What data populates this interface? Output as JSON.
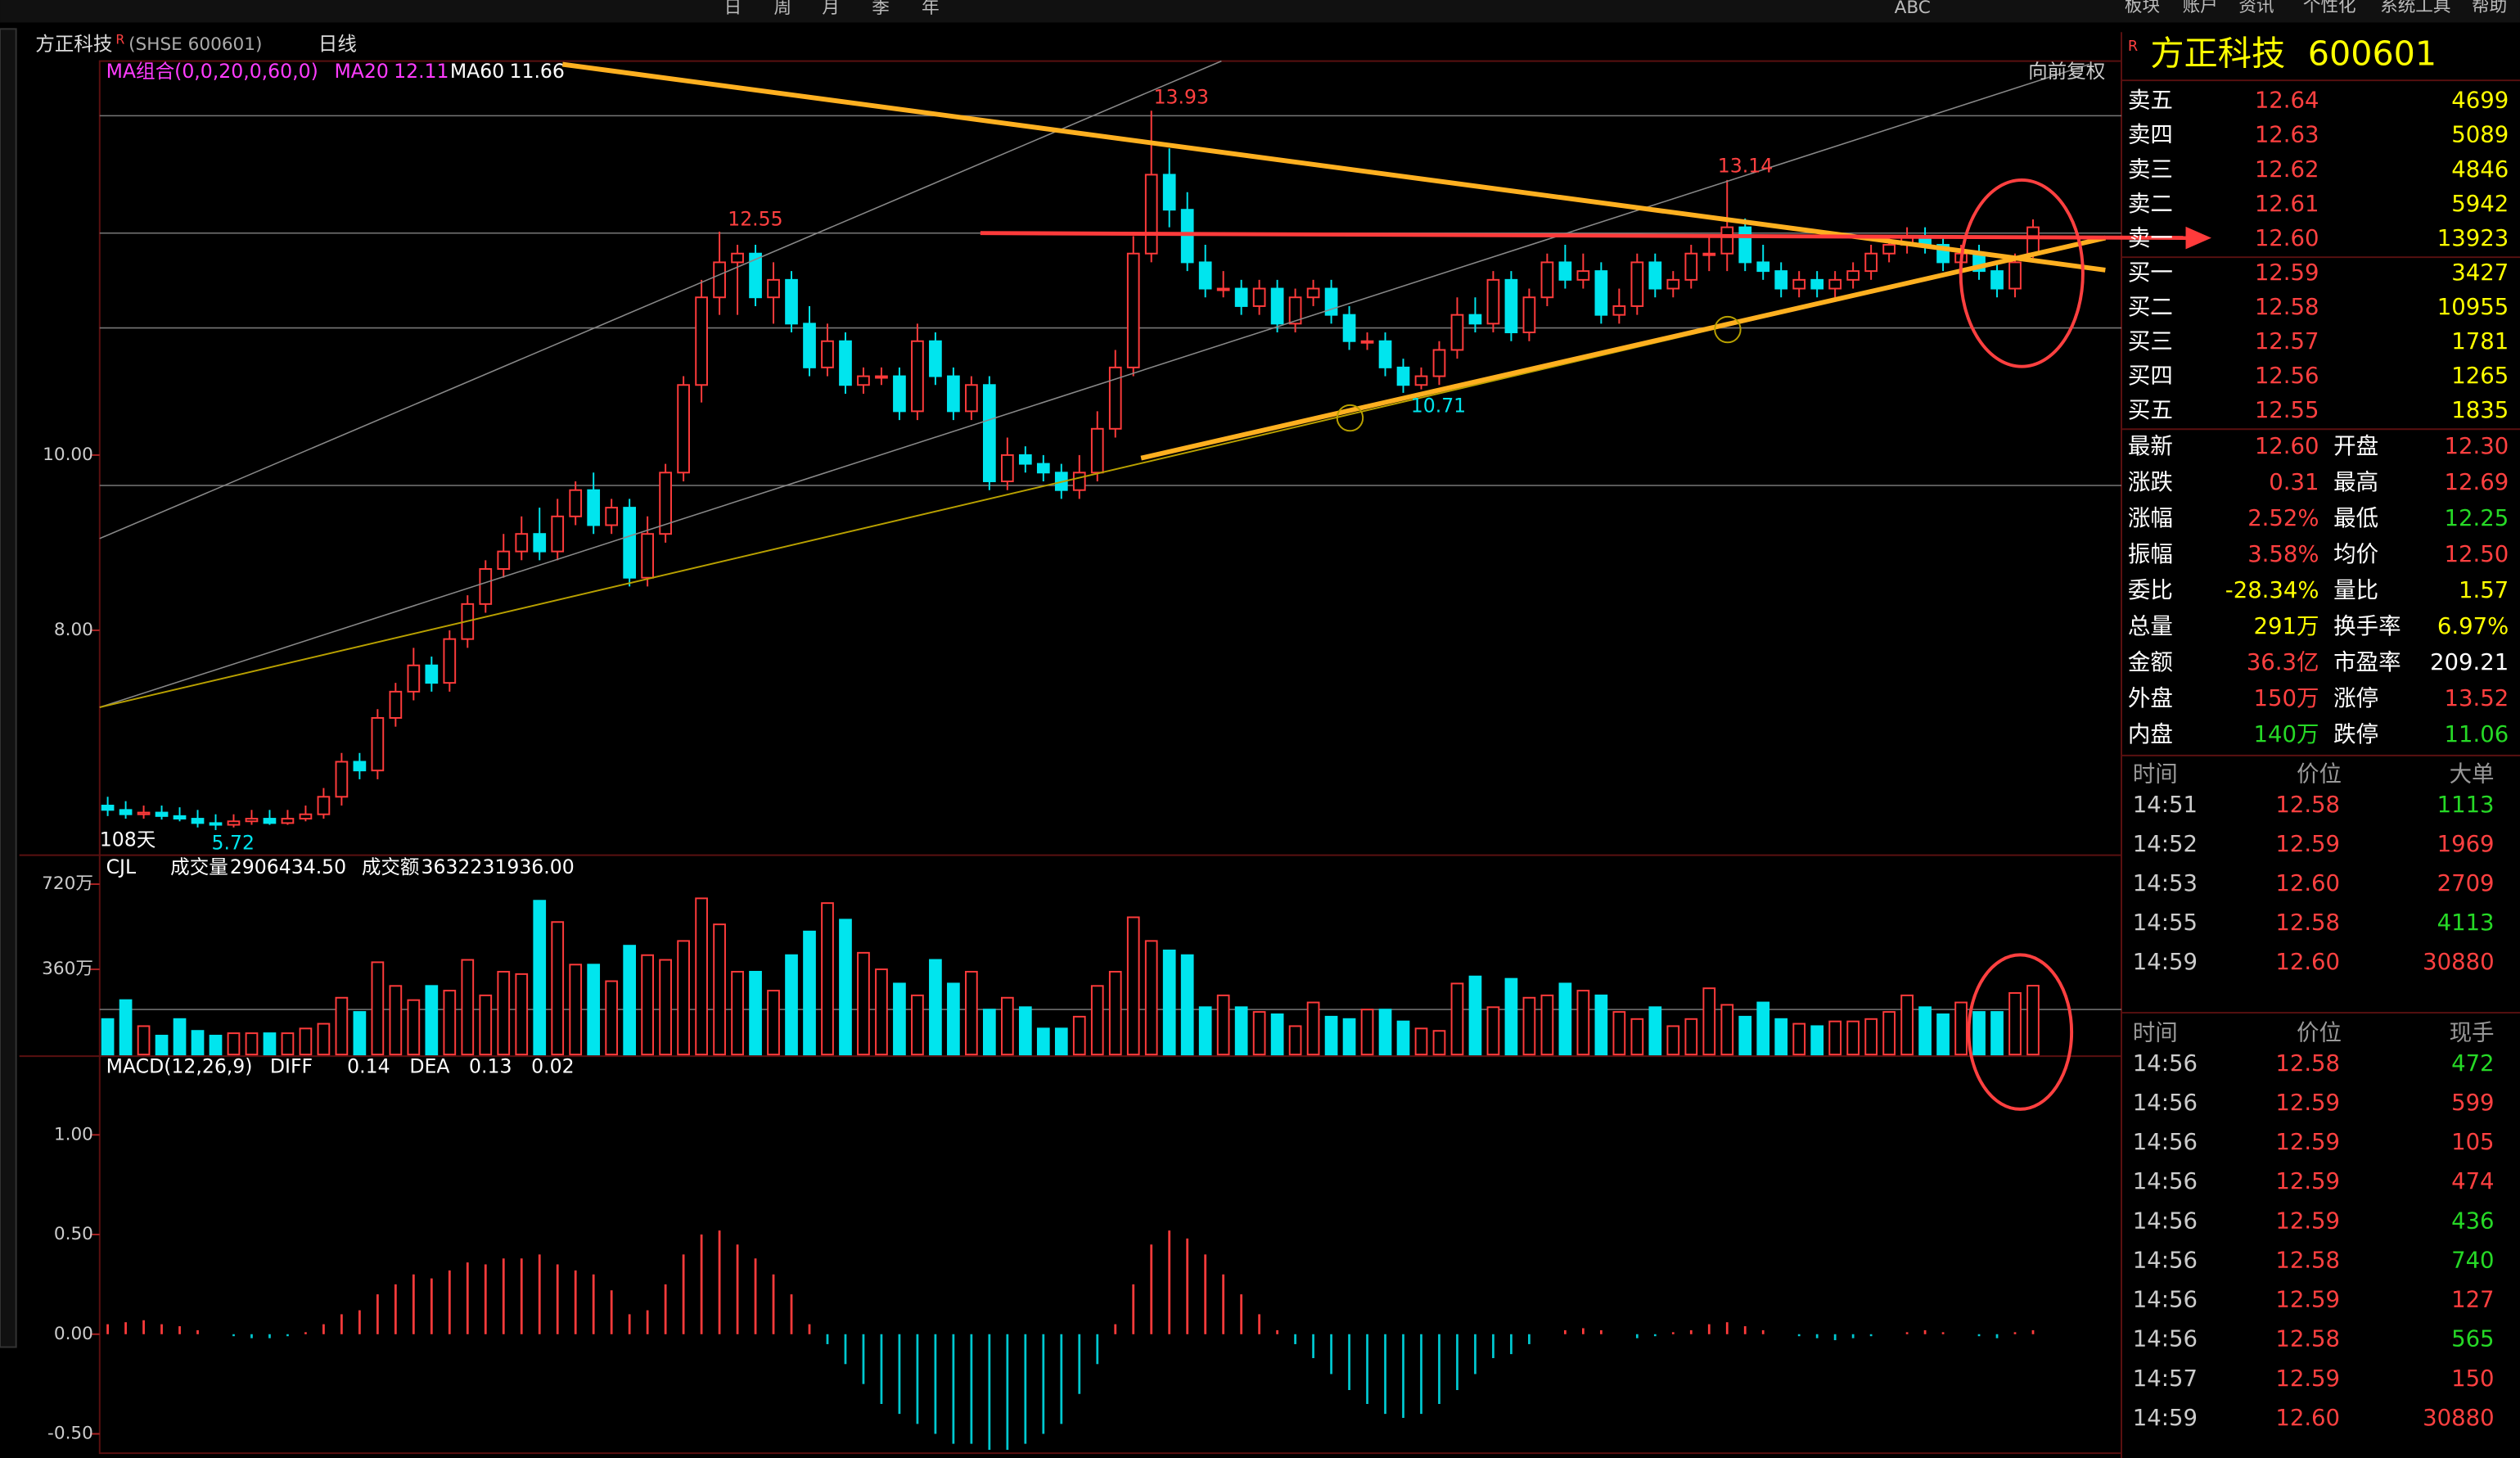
{
  "header": {
    "toolbar": [
      "日",
      "周",
      "月",
      "季",
      "年",
      "ABC"
    ],
    "menu": [
      "板块",
      "账户",
      "资讯",
      "个性化",
      "系统工具",
      "帮助"
    ],
    "stock": "方正科技",
    "badge": "R",
    "code": "(SHSE 600601)",
    "period": "日线"
  },
  "chart_data": [
    {
      "type": "candlestick",
      "indicator": "MA组合(0,0,20,0,60,0)",
      "ma_items": [
        {
          "name": "MA20",
          "value": "12.11",
          "color": "#ff3cff"
        },
        {
          "name": "MA60",
          "value": "11.66",
          "color": "#ffffff"
        }
      ],
      "adjust": "向前复权",
      "annotations": [
        "13.93",
        "12.55",
        "13.14",
        "10.71",
        "5.72",
        "108天"
      ],
      "up_color": "#ff3b3b",
      "down_color": "#00e5ee",
      "open": [
        6.0,
        5.95,
        5.9,
        5.92,
        5.88,
        5.85,
        5.8,
        5.78,
        5.82,
        5.85,
        5.8,
        5.85,
        5.9,
        6.1,
        6.5,
        6.4,
        7.0,
        7.3,
        7.6,
        7.4,
        7.9,
        8.3,
        8.7,
        8.9,
        9.1,
        8.9,
        9.3,
        9.6,
        9.2,
        9.4,
        8.6,
        9.1,
        9.8,
        10.8,
        11.8,
        12.2,
        12.3,
        11.8,
        12.0,
        11.5,
        11.0,
        11.3,
        10.8,
        10.9,
        10.9,
        10.5,
        11.3,
        10.9,
        10.5,
        10.8,
        9.7,
        10.0,
        9.9,
        9.8,
        9.6,
        9.8,
        10.3,
        11.0,
        12.3,
        13.2,
        12.8,
        12.2,
        11.9,
        11.9,
        11.7,
        11.9,
        11.5,
        11.8,
        11.9,
        11.6,
        11.3,
        11.3,
        11.0,
        10.8,
        10.9,
        11.2,
        11.6,
        11.5,
        12.0,
        11.4,
        11.8,
        12.2,
        12.0,
        12.1,
        11.6,
        11.7,
        12.2,
        11.9,
        12.0,
        12.3,
        12.3,
        12.6,
        12.2,
        12.1,
        11.9,
        12.0,
        11.9,
        12.0,
        12.1,
        12.3,
        12.4,
        12.5,
        12.4,
        12.2,
        12.3,
        12.1,
        11.9,
        12.3
      ],
      "high": [
        6.1,
        6.05,
        6.0,
        6.0,
        5.98,
        5.95,
        5.9,
        5.9,
        5.95,
        5.95,
        5.95,
        6.0,
        6.2,
        6.6,
        6.6,
        7.1,
        7.4,
        7.8,
        7.7,
        8.0,
        8.4,
        8.8,
        9.1,
        9.3,
        9.4,
        9.5,
        9.7,
        9.8,
        9.5,
        9.5,
        9.3,
        9.9,
        10.9,
        12.0,
        12.55,
        12.4,
        12.4,
        12.2,
        12.1,
        11.7,
        11.5,
        11.4,
        11.0,
        11.0,
        11.0,
        11.5,
        11.4,
        11.0,
        10.9,
        10.9,
        10.2,
        10.1,
        10.0,
        9.9,
        10.0,
        10.5,
        11.2,
        12.5,
        13.93,
        13.5,
        13.0,
        12.4,
        12.1,
        12.0,
        12.0,
        12.0,
        11.9,
        12.0,
        12.0,
        11.7,
        11.4,
        11.4,
        11.1,
        11.0,
        11.3,
        11.8,
        11.8,
        12.1,
        12.1,
        11.9,
        12.3,
        12.4,
        12.3,
        12.2,
        11.9,
        12.3,
        12.3,
        12.1,
        12.4,
        12.5,
        13.14,
        12.7,
        12.4,
        12.2,
        12.1,
        12.1,
        12.1,
        12.2,
        12.4,
        12.5,
        12.6,
        12.6,
        12.5,
        12.4,
        12.4,
        12.2,
        12.3,
        12.69
      ],
      "low": [
        5.88,
        5.85,
        5.85,
        5.84,
        5.82,
        5.75,
        5.72,
        5.75,
        5.78,
        5.78,
        5.78,
        5.82,
        5.85,
        6.0,
        6.3,
        6.3,
        6.9,
        7.2,
        7.3,
        7.3,
        7.8,
        8.2,
        8.6,
        8.8,
        8.8,
        8.8,
        9.2,
        9.1,
        9.1,
        8.5,
        8.5,
        9.0,
        9.7,
        10.6,
        11.6,
        11.6,
        11.7,
        11.5,
        11.4,
        10.9,
        10.9,
        10.7,
        10.7,
        10.8,
        10.4,
        10.4,
        10.8,
        10.4,
        10.4,
        9.6,
        9.6,
        9.8,
        9.7,
        9.5,
        9.5,
        9.7,
        10.2,
        10.9,
        12.2,
        12.6,
        12.1,
        11.8,
        11.8,
        11.6,
        11.6,
        11.4,
        11.4,
        11.7,
        11.5,
        11.2,
        11.2,
        10.9,
        10.71,
        10.75,
        10.8,
        11.1,
        11.4,
        11.4,
        11.3,
        11.3,
        11.7,
        11.9,
        11.9,
        11.5,
        11.5,
        11.6,
        11.8,
        11.8,
        11.9,
        12.1,
        12.1,
        12.1,
        12.0,
        11.8,
        11.8,
        11.8,
        11.8,
        11.9,
        12.0,
        12.2,
        12.3,
        12.3,
        12.1,
        12.1,
        12.0,
        11.8,
        11.8,
        12.25
      ],
      "close": [
        5.95,
        5.9,
        5.92,
        5.88,
        5.85,
        5.8,
        5.78,
        5.82,
        5.85,
        5.8,
        5.85,
        5.9,
        6.1,
        6.5,
        6.4,
        7.0,
        7.3,
        7.6,
        7.4,
        7.9,
        8.3,
        8.7,
        8.9,
        9.1,
        8.9,
        9.3,
        9.6,
        9.2,
        9.4,
        8.6,
        9.1,
        9.8,
        10.8,
        11.8,
        12.2,
        12.3,
        11.8,
        12.0,
        11.5,
        11.0,
        11.3,
        10.8,
        10.9,
        10.9,
        10.5,
        11.3,
        10.9,
        10.5,
        10.8,
        9.7,
        10.0,
        9.9,
        9.8,
        9.6,
        9.8,
        10.3,
        11.0,
        12.3,
        13.2,
        12.8,
        12.2,
        11.9,
        11.9,
        11.7,
        11.9,
        11.5,
        11.8,
        11.9,
        11.6,
        11.3,
        11.3,
        11.0,
        10.8,
        10.9,
        11.2,
        11.6,
        11.5,
        12.0,
        11.4,
        11.8,
        12.2,
        12.0,
        12.1,
        11.6,
        11.7,
        12.2,
        11.9,
        12.0,
        12.3,
        12.3,
        12.6,
        12.2,
        12.1,
        11.9,
        12.0,
        11.9,
        12.0,
        12.1,
        12.3,
        12.4,
        12.5,
        12.4,
        12.2,
        12.3,
        12.1,
        11.9,
        12.2,
        12.6
      ],
      "ylim": [
        5.47,
        14.46
      ],
      "yticks": [
        {
          "value": 8,
          "label": "8.00"
        },
        {
          "value": 10,
          "label": "10.00"
        }
      ]
    },
    {
      "type": "bar",
      "indicator": "CJL",
      "fields": [
        {
          "name": "成交量",
          "value": "2906434.50"
        },
        {
          "name": "成交额",
          "value": "3632231936.00"
        }
      ],
      "values": [
        150,
        230,
        120,
        80,
        150,
        100,
        80,
        90,
        90,
        90,
        90,
        110,
        130,
        240,
        180,
        390,
        290,
        230,
        290,
        270,
        400,
        250,
        350,
        340,
        650,
        560,
        380,
        380,
        310,
        460,
        420,
        400,
        480,
        660,
        550,
        350,
        350,
        270,
        420,
        520,
        640,
        570,
        430,
        360,
        300,
        250,
        400,
        300,
        350,
        190,
        240,
        200,
        110,
        110,
        160,
        290,
        350,
        580,
        480,
        440,
        420,
        200,
        250,
        200,
        180,
        170,
        120,
        220,
        160,
        150,
        190,
        190,
        140,
        110,
        100,
        300,
        330,
        200,
        320,
        240,
        250,
        300,
        270,
        250,
        180,
        150,
        200,
        120,
        150,
        280,
        210,
        160,
        220,
        150,
        130,
        120,
        140,
        140,
        150,
        180,
        250,
        200,
        170,
        220,
        180,
        180,
        260,
        291
      ],
      "ylim": [
        0,
        822
      ],
      "yticks": [
        {
          "value": 360,
          "label": "360万"
        },
        {
          "value": 720,
          "label": "720万"
        }
      ]
    },
    {
      "type": "macd",
      "indicator": "MACD(12,26,9)",
      "fields": [
        {
          "name": "DIFF",
          "value": "0.14"
        },
        {
          "name": "DEA",
          "value": "0.13"
        },
        {
          "name": "",
          "value": "0.02"
        }
      ],
      "values": [
        0.05,
        0.06,
        0.07,
        0.05,
        0.04,
        0.02,
        0,
        -0.01,
        -0.02,
        -0.02,
        -0.01,
        0.01,
        0.05,
        0.1,
        0.12,
        0.2,
        0.25,
        0.3,
        0.28,
        0.32,
        0.36,
        0.35,
        0.38,
        0.38,
        0.4,
        0.35,
        0.32,
        0.3,
        0.22,
        0.1,
        0.12,
        0.25,
        0.4,
        0.5,
        0.52,
        0.45,
        0.38,
        0.3,
        0.2,
        0.05,
        -0.05,
        -0.15,
        -0.25,
        -0.35,
        -0.4,
        -0.45,
        -0.5,
        -0.55,
        -0.55,
        -0.58,
        -0.58,
        -0.55,
        -0.5,
        -0.45,
        -0.3,
        -0.15,
        0.05,
        0.25,
        0.45,
        0.52,
        0.48,
        0.4,
        0.3,
        0.2,
        0.1,
        0.02,
        -0.05,
        -0.12,
        -0.2,
        -0.28,
        -0.35,
        -0.4,
        -0.42,
        -0.4,
        -0.35,
        -0.28,
        -0.2,
        -0.12,
        -0.1,
        -0.05,
        0.0,
        0.02,
        0.03,
        0.02,
        0.0,
        -0.02,
        -0.01,
        0.01,
        0.02,
        0.05,
        0.06,
        0.04,
        0.02,
        0.0,
        -0.01,
        -0.02,
        -0.03,
        -0.02,
        -0.01,
        0.0,
        0.01,
        0.02,
        0.01,
        0.0,
        -0.01,
        -0.02,
        0.01,
        0.02
      ],
      "ylim": [
        -0.605,
        1.387
      ],
      "yticks": [
        {
          "value": -0.5,
          "label": "-0.50"
        },
        {
          "value": 0,
          "label": "0.00"
        },
        {
          "value": 0.5,
          "label": "0.50"
        },
        {
          "value": 1,
          "label": "1.00"
        }
      ]
    }
  ],
  "quote": {
    "badge": "R",
    "name": "方正科技",
    "code": "600601",
    "asks": [
      [
        "卖五",
        "12.64",
        "4699"
      ],
      [
        "卖四",
        "12.63",
        "5089"
      ],
      [
        "卖三",
        "12.62",
        "4846"
      ],
      [
        "卖二",
        "12.61",
        "5942"
      ],
      [
        "卖一",
        "12.60",
        "13923"
      ]
    ],
    "bids": [
      [
        "买一",
        "12.59",
        "3427"
      ],
      [
        "买二",
        "12.58",
        "10955"
      ],
      [
        "买三",
        "12.57",
        "1781"
      ],
      [
        "买四",
        "12.56",
        "1265"
      ],
      [
        "买五",
        "12.55",
        "1835"
      ]
    ],
    "stats": [
      [
        {
          "label": "最新",
          "value": "12.60",
          "color": "#ff4040"
        },
        {
          "label": "开盘",
          "value": "12.30",
          "color": "#ff4040"
        }
      ],
      [
        {
          "label": "涨跌",
          "value": "0.31",
          "color": "#ff4040"
        },
        {
          "label": "最高",
          "value": "12.69",
          "color": "#ff4040"
        }
      ],
      [
        {
          "label": "涨幅",
          "value": "2.52%",
          "color": "#ff4040"
        },
        {
          "label": "最低",
          "value": "12.25",
          "color": "#26d926"
        }
      ],
      [
        {
          "label": "振幅",
          "value": "3.58%",
          "color": "#ff4040"
        },
        {
          "label": "均价",
          "value": "12.50",
          "color": "#ff4040"
        }
      ],
      [
        {
          "label": "委比",
          "value": "-28.34%",
          "color": "#ffff00"
        },
        {
          "label": "量比",
          "value": "1.57",
          "color": "#ffff00"
        }
      ],
      [
        {
          "label": "总量",
          "value": "291万",
          "color": "#ffff00"
        },
        {
          "label": "换手率",
          "value": "6.97%",
          "color": "#ffff00"
        }
      ],
      [
        {
          "label": "金额",
          "value": "36.3亿",
          "color": "#ff4040"
        },
        {
          "label": "市盈率",
          "value": "209.21",
          "color": "#ffffff"
        }
      ],
      [
        {
          "label": "外盘",
          "value": "150万",
          "color": "#ff4040"
        },
        {
          "label": "涨停",
          "value": "13.52",
          "color": "#ff4040"
        }
      ],
      [
        {
          "label": "内盘",
          "value": "140万",
          "color": "#26d926"
        },
        {
          "label": "跌停",
          "value": "11.06",
          "color": "#26d926"
        }
      ]
    ],
    "big_header": [
      "时间",
      "价位",
      "大单"
    ],
    "big": [
      {
        "time": "14:51",
        "price": "12.58",
        "volume": "1113",
        "color": "#26d926"
      },
      {
        "time": "14:52",
        "price": "12.59",
        "volume": "1969",
        "color": "#ff4040"
      },
      {
        "time": "14:53",
        "price": "12.60",
        "volume": "2709",
        "color": "#ff4040"
      },
      {
        "time": "14:55",
        "price": "12.58",
        "volume": "4113",
        "color": "#26d926"
      },
      {
        "time": "14:59",
        "price": "12.60",
        "volume": "30880",
        "color": "#ff4040"
      }
    ],
    "tick_header": [
      "时间",
      "价位",
      "现手"
    ],
    "ticks": [
      {
        "time": "14:56",
        "price": "12.58",
        "volume": "472",
        "color": "#26d926"
      },
      {
        "time": "14:56",
        "price": "12.59",
        "volume": "599",
        "color": "#ff4040"
      },
      {
        "time": "14:56",
        "price": "12.59",
        "volume": "105",
        "color": "#ff4040"
      },
      {
        "time": "14:56",
        "price": "12.59",
        "volume": "474",
        "color": "#ff4040"
      },
      {
        "time": "14:56",
        "price": "12.59",
        "volume": "436",
        "color": "#26d926"
      },
      {
        "time": "14:56",
        "price": "12.58",
        "volume": "740",
        "color": "#26d926"
      },
      {
        "time": "14:56",
        "price": "12.59",
        "volume": "127",
        "color": "#ff4040"
      },
      {
        "time": "14:56",
        "price": "12.58",
        "volume": "565",
        "color": "#26d926"
      },
      {
        "time": "14:57",
        "price": "12.59",
        "volume": "150",
        "color": "#ff4040"
      },
      {
        "time": "14:59",
        "price": "12.60",
        "volume": "30880",
        "color": "#ff4040"
      }
    ]
  }
}
